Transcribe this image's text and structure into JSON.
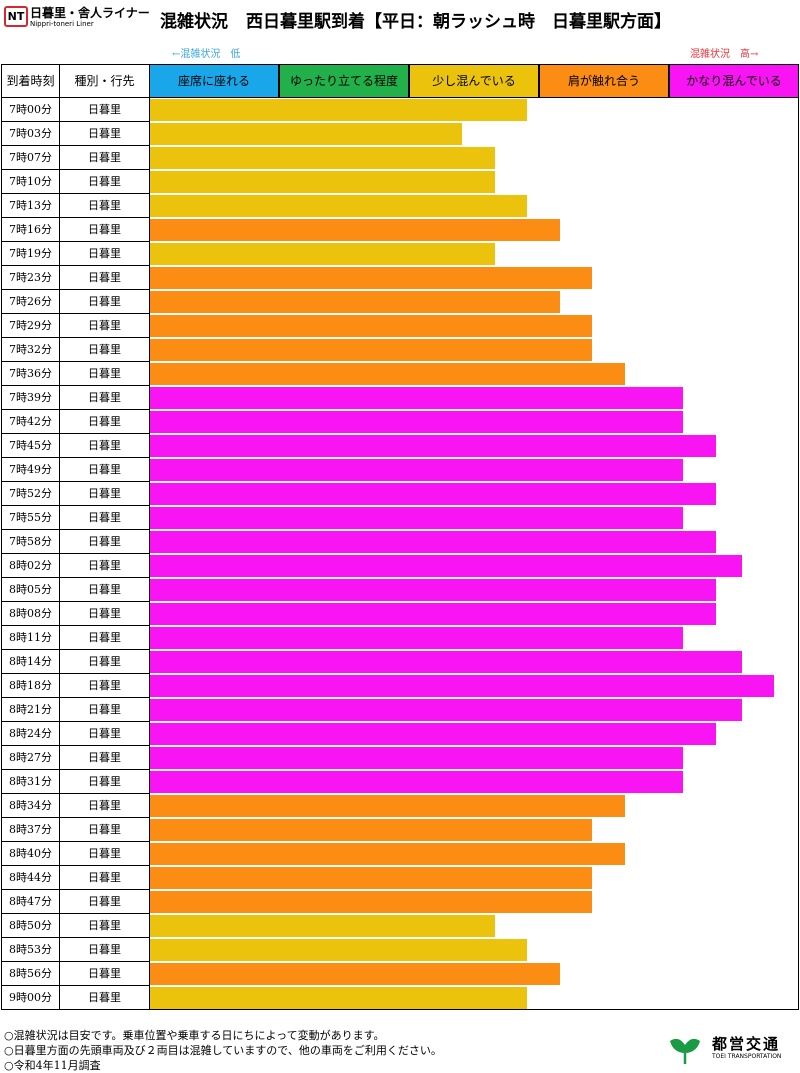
{
  "logo": {
    "badge": "NT",
    "name": "日暮里・舎人ライナー",
    "subname": "Nippri-toneri Liner"
  },
  "title": {
    "main": "混雑状況",
    "sub": "西日暮里駅到着【平日：朝ラッシュ時　日暮里駅方面】"
  },
  "scale": {
    "low": "←混雑状況　低",
    "high": "混雑状況　高→"
  },
  "columns": {
    "time": "到着時刻",
    "dest": "種別・行先"
  },
  "colors": {
    "level1": "#1aa7e9",
    "level2": "#22b04a",
    "level3": "#ecc30c",
    "level4": "#fb8c14",
    "level5": "#f914f3",
    "scale_low": "#3aa7e0",
    "scale_high": "#e8323c"
  },
  "chart_data": {
    "type": "bar",
    "orientation": "horizontal",
    "levels": [
      "座席に座れる",
      "ゆったり立てる程度",
      "少し混んでいる",
      "肩が触れ合う",
      "かなり混んでいる"
    ],
    "rows": [
      {
        "time": "7時00分",
        "dest": "日暮里",
        "value": 2.9,
        "level": 3
      },
      {
        "time": "7時03分",
        "dest": "日暮里",
        "value": 2.4,
        "level": 3
      },
      {
        "time": "7時07分",
        "dest": "日暮里",
        "value": 2.65,
        "level": 3
      },
      {
        "time": "7時10分",
        "dest": "日暮里",
        "value": 2.65,
        "level": 3
      },
      {
        "time": "7時13分",
        "dest": "日暮里",
        "value": 2.9,
        "level": 3
      },
      {
        "time": "7時16分",
        "dest": "日暮里",
        "value": 3.15,
        "level": 4
      },
      {
        "time": "7時19分",
        "dest": "日暮里",
        "value": 2.65,
        "level": 3
      },
      {
        "time": "7時23分",
        "dest": "日暮里",
        "value": 3.4,
        "level": 4
      },
      {
        "time": "7時26分",
        "dest": "日暮里",
        "value": 3.15,
        "level": 4
      },
      {
        "time": "7時29分",
        "dest": "日暮里",
        "value": 3.4,
        "level": 4
      },
      {
        "time": "7時32分",
        "dest": "日暮里",
        "value": 3.4,
        "level": 4
      },
      {
        "time": "7時36分",
        "dest": "日暮里",
        "value": 3.65,
        "level": 4
      },
      {
        "time": "7時39分",
        "dest": "日暮里",
        "value": 4.1,
        "level": 5
      },
      {
        "time": "7時42分",
        "dest": "日暮里",
        "value": 4.1,
        "level": 5
      },
      {
        "time": "7時45分",
        "dest": "日暮里",
        "value": 4.35,
        "level": 5
      },
      {
        "time": "7時49分",
        "dest": "日暮里",
        "value": 4.1,
        "level": 5
      },
      {
        "time": "7時52分",
        "dest": "日暮里",
        "value": 4.35,
        "level": 5
      },
      {
        "time": "7時55分",
        "dest": "日暮里",
        "value": 4.1,
        "level": 5
      },
      {
        "time": "7時58分",
        "dest": "日暮里",
        "value": 4.35,
        "level": 5
      },
      {
        "time": "8時02分",
        "dest": "日暮里",
        "value": 4.55,
        "level": 5
      },
      {
        "time": "8時05分",
        "dest": "日暮里",
        "value": 4.35,
        "level": 5
      },
      {
        "time": "8時08分",
        "dest": "日暮里",
        "value": 4.35,
        "level": 5
      },
      {
        "time": "8時11分",
        "dest": "日暮里",
        "value": 4.1,
        "level": 5
      },
      {
        "time": "8時14分",
        "dest": "日暮里",
        "value": 4.55,
        "level": 5
      },
      {
        "time": "8時18分",
        "dest": "日暮里",
        "value": 4.8,
        "level": 5
      },
      {
        "time": "8時21分",
        "dest": "日暮里",
        "value": 4.55,
        "level": 5
      },
      {
        "time": "8時24分",
        "dest": "日暮里",
        "value": 4.35,
        "level": 5
      },
      {
        "time": "8時27分",
        "dest": "日暮里",
        "value": 4.1,
        "level": 5
      },
      {
        "time": "8時31分",
        "dest": "日暮里",
        "value": 4.1,
        "level": 5
      },
      {
        "time": "8時34分",
        "dest": "日暮里",
        "value": 3.65,
        "level": 4
      },
      {
        "time": "8時37分",
        "dest": "日暮里",
        "value": 3.4,
        "level": 4
      },
      {
        "time": "8時40分",
        "dest": "日暮里",
        "value": 3.65,
        "level": 4
      },
      {
        "time": "8時44分",
        "dest": "日暮里",
        "value": 3.4,
        "level": 4
      },
      {
        "time": "8時47分",
        "dest": "日暮里",
        "value": 3.4,
        "level": 4
      },
      {
        "time": "8時50分",
        "dest": "日暮里",
        "value": 2.65,
        "level": 3
      },
      {
        "time": "8時53分",
        "dest": "日暮里",
        "value": 2.9,
        "level": 3
      },
      {
        "time": "8時56分",
        "dest": "日暮里",
        "value": 3.15,
        "level": 4
      },
      {
        "time": "9時00分",
        "dest": "日暮里",
        "value": 2.9,
        "level": 3
      }
    ],
    "xlim": [
      0,
      5
    ],
    "grid": false,
    "legend": "top"
  },
  "notes": [
    "○混雑状況は目安です。乗車位置や乗車する日にちによって変動があります。",
    "○日暮里方面の先頭車両及び２両目は混雑していますので、他の車両をご利用ください。",
    "○令和4年11月調査"
  ],
  "brand": {
    "name": "都営交通",
    "sub": "TOEI TRANSPORTATION"
  }
}
